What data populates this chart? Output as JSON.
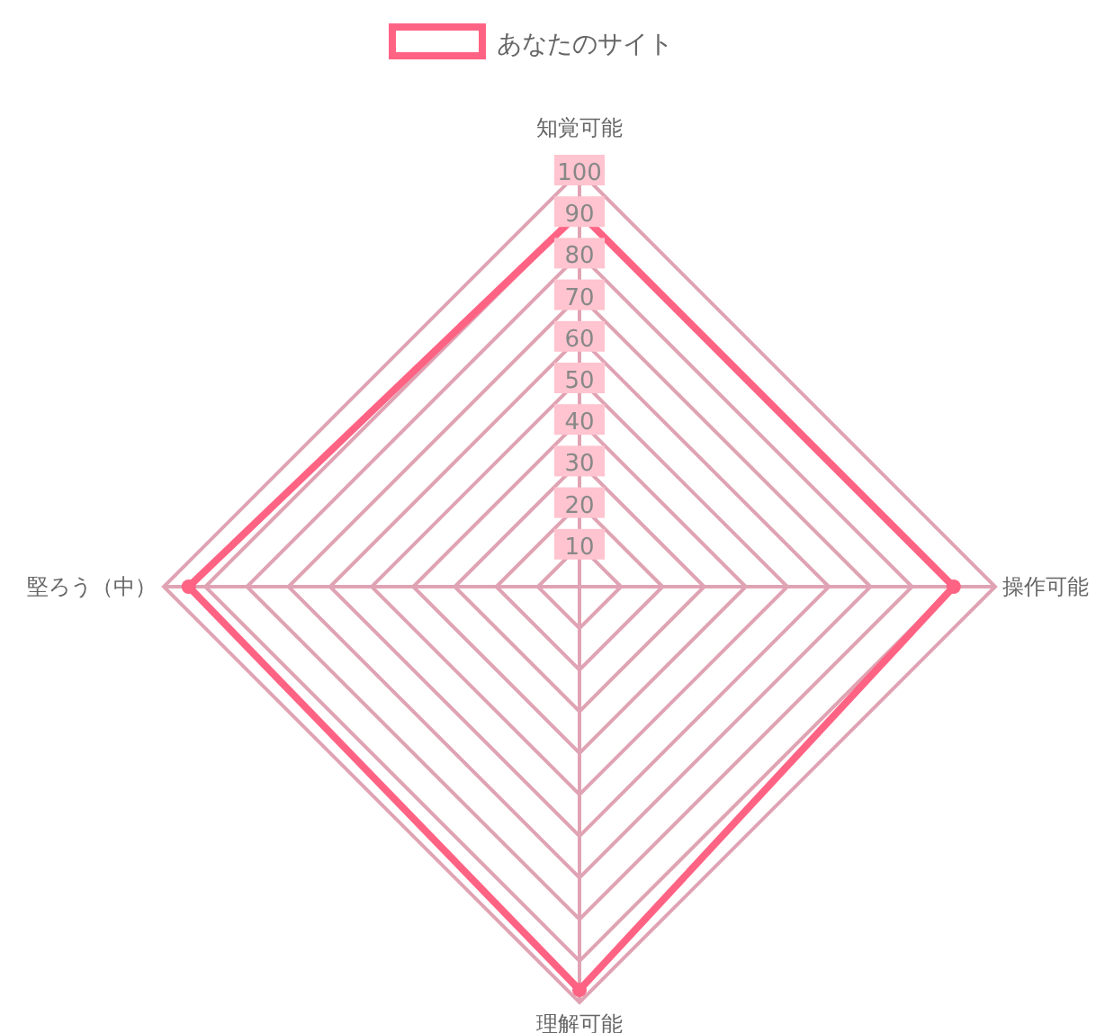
{
  "chart_data": {
    "type": "radar",
    "categories": [
      "知覚可能",
      "操作可能",
      "理解可能",
      "堅ろう（中）"
    ],
    "series": [
      {
        "name": "あなたのサイト",
        "color": "#ff6384",
        "values": [
          90,
          90,
          97,
          94
        ]
      }
    ],
    "ylim": [
      0,
      100
    ],
    "yticks": [
      10,
      20,
      30,
      40,
      50,
      60,
      70,
      80,
      90,
      100
    ],
    "legend": "top",
    "marker": "circle",
    "grid": true
  }
}
